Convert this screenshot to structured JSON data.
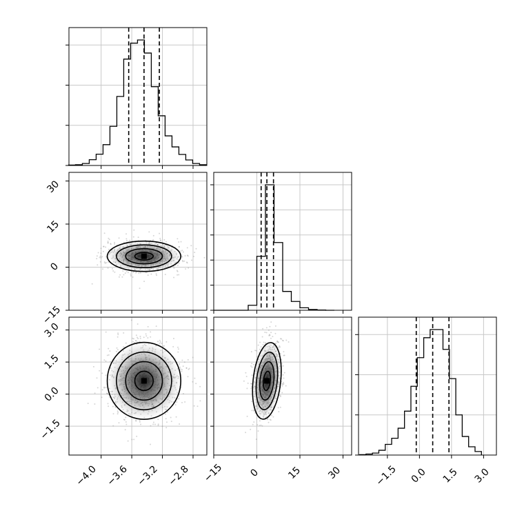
{
  "chart_data": [
    {
      "type": "histogram",
      "panel": "param-0-marginal",
      "x": [
        -4.38,
        -4.29,
        -4.2,
        -4.11,
        -4.02,
        -3.93,
        -3.84,
        -3.75,
        -3.66,
        -3.57,
        -3.48,
        -3.39,
        -3.3,
        -3.21,
        -3.12,
        -3.03,
        -2.94,
        -2.85,
        -2.76,
        -2.67
      ],
      "values": [
        0.003,
        0.006,
        0.016,
        0.046,
        0.09,
        0.166,
        0.312,
        0.55,
        0.848,
        0.975,
        1.0,
        0.896,
        0.628,
        0.396,
        0.236,
        0.148,
        0.088,
        0.044,
        0.016,
        0.006
      ],
      "quantile_lines": [
        -3.64,
        -3.44,
        -3.24
      ],
      "xlim": [
        -4.42,
        -2.62
      ],
      "grid": true
    },
    {
      "type": "histogram",
      "panel": "param-1-marginal",
      "x": [
        -13.5,
        -10.5,
        -7.5,
        -4.5,
        -1.5,
        1.5,
        4.5,
        7.5,
        10.5,
        13.5,
        16.5,
        19.5,
        22.5,
        25.5
      ],
      "values": [
        0.0,
        0.0,
        0.0,
        0.0,
        0.04,
        0.43,
        1.0,
        0.54,
        0.15,
        0.07,
        0.02,
        0.006,
        0.002,
        0.0
      ],
      "quantile_lines": [
        1.5,
        3.5,
        5.8
      ],
      "xlim": [
        -15,
        33
      ],
      "grid": true
    },
    {
      "type": "histogram",
      "panel": "param-2-marginal",
      "x": [
        -2.65,
        -2.35,
        -2.05,
        -1.75,
        -1.45,
        -1.15,
        -0.85,
        -0.55,
        -0.25,
        0.05,
        0.35,
        0.65,
        0.95,
        1.25,
        1.55,
        1.85,
        2.15,
        2.45,
        2.75
      ],
      "values": [
        0.003,
        0.008,
        0.016,
        0.038,
        0.085,
        0.134,
        0.214,
        0.35,
        0.548,
        0.776,
        0.935,
        1.0,
        1.0,
        0.842,
        0.609,
        0.32,
        0.148,
        0.066,
        0.028
      ],
      "quantile_lines": [
        -0.15,
        0.62,
        1.38
      ],
      "xlim": [
        -2.85,
        3.6
      ],
      "grid": true
    },
    {
      "type": "scatter",
      "panel": "param-0-vs-param-1",
      "x_center": -3.44,
      "y_center": 3.8,
      "x_spread": 0.2,
      "y_spread": 2.2,
      "xlim": [
        -4.42,
        -2.62
      ],
      "ylim": [
        -15,
        33
      ],
      "yticks": [
        "−15",
        "0",
        "15",
        "30"
      ],
      "yticks_values": [
        -15,
        0,
        15,
        30
      ],
      "grid": true
    },
    {
      "type": "scatter",
      "panel": "param-0-vs-param-2",
      "x_center": -3.44,
      "y_center": 0.62,
      "x_spread": 0.2,
      "y_spread": 0.75,
      "xlim": [
        -4.42,
        -2.62
      ],
      "ylim": [
        -2.85,
        3.6
      ],
      "xticks": [
        "−4.0",
        "−3.6",
        "−3.2",
        "−2.8"
      ],
      "xticks_values": [
        -4.0,
        -3.6,
        -3.2,
        -2.8
      ],
      "yticks": [
        "−1.5",
        "0.0",
        "1.5",
        "3.0"
      ],
      "yticks_values": [
        -1.5,
        0.0,
        1.5,
        3.0
      ],
      "grid": true
    },
    {
      "type": "scatter",
      "panel": "param-1-vs-param-2",
      "x_center": 3.5,
      "y_center": 0.62,
      "x_spread": 2.0,
      "y_spread": 0.75,
      "xlim": [
        -15,
        33
      ],
      "ylim": [
        -2.85,
        3.6
      ],
      "xticks": [
        "−15",
        "0",
        "15",
        "30"
      ],
      "xticks_values": [
        -15,
        0,
        15,
        30
      ],
      "grid": true
    },
    {
      "type": "ticks",
      "panel": "param-2-marginal-xaxis",
      "xticks": [
        "−1.5",
        "0.0",
        "1.5",
        "3.0"
      ],
      "xticks_values": [
        -1.5,
        0.0,
        1.5,
        3.0
      ]
    }
  ]
}
